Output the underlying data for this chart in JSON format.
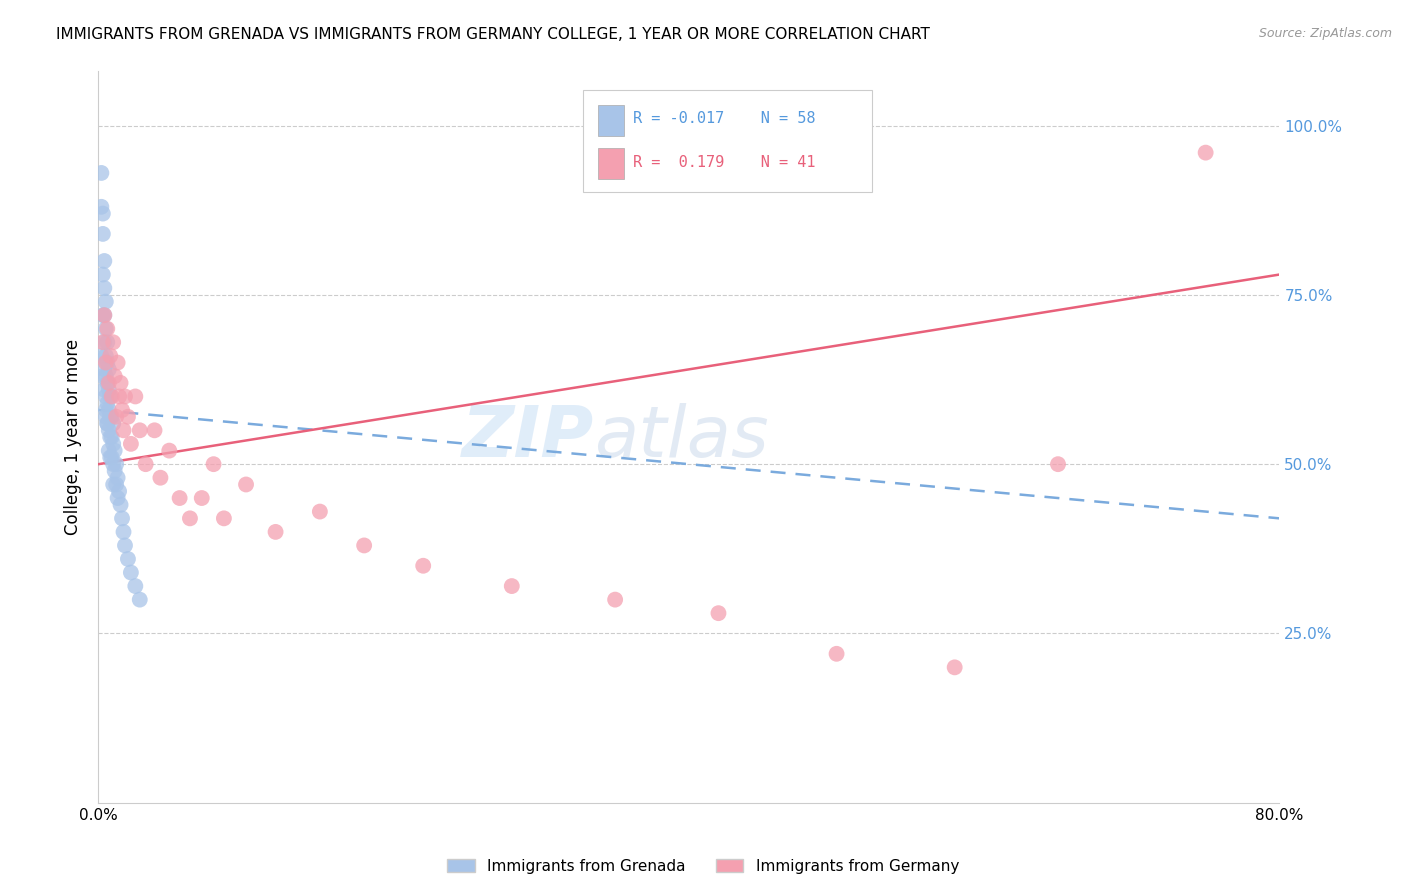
{
  "title": "IMMIGRANTS FROM GRENADA VS IMMIGRANTS FROM GERMANY COLLEGE, 1 YEAR OR MORE CORRELATION CHART",
  "source": "Source: ZipAtlas.com",
  "ylabel": "College, 1 year or more",
  "xlim": [
    0.0,
    0.8
  ],
  "ylim": [
    0.0,
    1.08
  ],
  "grenada_R": -0.017,
  "grenada_N": 58,
  "germany_R": 0.179,
  "germany_N": 41,
  "grenada_color": "#a8c4e8",
  "germany_color": "#f4a0b0",
  "grenada_line_color": "#7aaadd",
  "germany_line_color": "#e8607a",
  "watermark_zip": "ZIP",
  "watermark_atlas": "atlas",
  "grenada_line_y0": 0.58,
  "grenada_line_y1": 0.42,
  "germany_line_y0": 0.5,
  "germany_line_y1": 0.78,
  "grenada_x": [
    0.002,
    0.002,
    0.003,
    0.003,
    0.003,
    0.003,
    0.004,
    0.004,
    0.004,
    0.004,
    0.004,
    0.005,
    0.005,
    0.005,
    0.005,
    0.005,
    0.005,
    0.006,
    0.006,
    0.006,
    0.006,
    0.006,
    0.007,
    0.007,
    0.007,
    0.007,
    0.007,
    0.008,
    0.008,
    0.008,
    0.008,
    0.009,
    0.009,
    0.009,
    0.01,
    0.01,
    0.01,
    0.01,
    0.011,
    0.011,
    0.012,
    0.012,
    0.013,
    0.013,
    0.014,
    0.015,
    0.016,
    0.017,
    0.018,
    0.02,
    0.022,
    0.025,
    0.028,
    0.002,
    0.003,
    0.004,
    0.005,
    0.006
  ],
  "grenada_y": [
    0.93,
    0.88,
    0.87,
    0.84,
    0.78,
    0.72,
    0.8,
    0.76,
    0.72,
    0.68,
    0.64,
    0.74,
    0.7,
    0.66,
    0.63,
    0.6,
    0.57,
    0.68,
    0.65,
    0.62,
    0.59,
    0.56,
    0.64,
    0.61,
    0.58,
    0.55,
    0.52,
    0.6,
    0.57,
    0.54,
    0.51,
    0.57,
    0.54,
    0.51,
    0.56,
    0.53,
    0.5,
    0.47,
    0.52,
    0.49,
    0.5,
    0.47,
    0.48,
    0.45,
    0.46,
    0.44,
    0.42,
    0.4,
    0.38,
    0.36,
    0.34,
    0.32,
    0.3,
    0.66,
    0.63,
    0.61,
    0.58,
    0.56
  ],
  "germany_x": [
    0.003,
    0.004,
    0.005,
    0.006,
    0.007,
    0.008,
    0.009,
    0.01,
    0.011,
    0.012,
    0.013,
    0.014,
    0.015,
    0.016,
    0.017,
    0.018,
    0.02,
    0.022,
    0.025,
    0.028,
    0.032,
    0.038,
    0.042,
    0.048,
    0.055,
    0.062,
    0.07,
    0.078,
    0.085,
    0.1,
    0.12,
    0.15,
    0.18,
    0.22,
    0.28,
    0.35,
    0.42,
    0.5,
    0.58,
    0.65,
    0.75
  ],
  "germany_y": [
    0.68,
    0.72,
    0.65,
    0.7,
    0.62,
    0.66,
    0.6,
    0.68,
    0.63,
    0.57,
    0.65,
    0.6,
    0.62,
    0.58,
    0.55,
    0.6,
    0.57,
    0.53,
    0.6,
    0.55,
    0.5,
    0.55,
    0.48,
    0.52,
    0.45,
    0.42,
    0.45,
    0.5,
    0.42,
    0.47,
    0.4,
    0.43,
    0.38,
    0.35,
    0.32,
    0.3,
    0.28,
    0.22,
    0.2,
    0.5,
    0.96
  ]
}
